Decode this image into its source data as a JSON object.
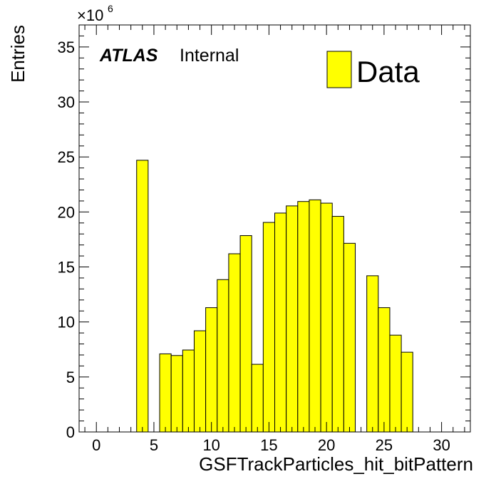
{
  "chart_data": {
    "type": "bar",
    "xlabel": "GSFTrackParticles_hit_bitPattern",
    "ylabel": "Entries",
    "y_multiplier": {
      "base": "×10",
      "exponent": "6"
    },
    "xlim": [
      -1.5,
      32.5
    ],
    "ylim": [
      0,
      37
    ],
    "bin_width": 1,
    "x_major_ticks": [
      0,
      5,
      10,
      15,
      20,
      25,
      30
    ],
    "y_major_ticks": [
      0,
      5,
      10,
      15,
      20,
      25,
      30,
      35
    ],
    "grid": false,
    "fill_color": "#ffff00",
    "edge_color": "#000000",
    "bins": [
      {
        "x": 4,
        "value": 24.7
      },
      {
        "x": 6,
        "value": 7.1
      },
      {
        "x": 7,
        "value": 6.95
      },
      {
        "x": 8,
        "value": 7.45
      },
      {
        "x": 9,
        "value": 9.2
      },
      {
        "x": 10,
        "value": 11.3
      },
      {
        "x": 11,
        "value": 13.85
      },
      {
        "x": 12,
        "value": 16.2
      },
      {
        "x": 13,
        "value": 17.85
      },
      {
        "x": 14,
        "value": 6.15
      },
      {
        "x": 15,
        "value": 19.05
      },
      {
        "x": 16,
        "value": 19.9
      },
      {
        "x": 17,
        "value": 20.55
      },
      {
        "x": 18,
        "value": 20.95
      },
      {
        "x": 19,
        "value": 21.1
      },
      {
        "x": 20,
        "value": 20.8
      },
      {
        "x": 21,
        "value": 19.6
      },
      {
        "x": 22,
        "value": 17.15
      },
      {
        "x": 24,
        "value": 14.2
      },
      {
        "x": 25,
        "value": 11.3
      },
      {
        "x": 26,
        "value": 8.8
      },
      {
        "x": 27,
        "value": 7.25
      }
    ],
    "legend": {
      "position": "top-right",
      "entries": [
        {
          "label": "Data",
          "color": "#ffff00"
        }
      ]
    },
    "annotation": {
      "atlas": "ATLAS",
      "status": "Internal"
    }
  }
}
